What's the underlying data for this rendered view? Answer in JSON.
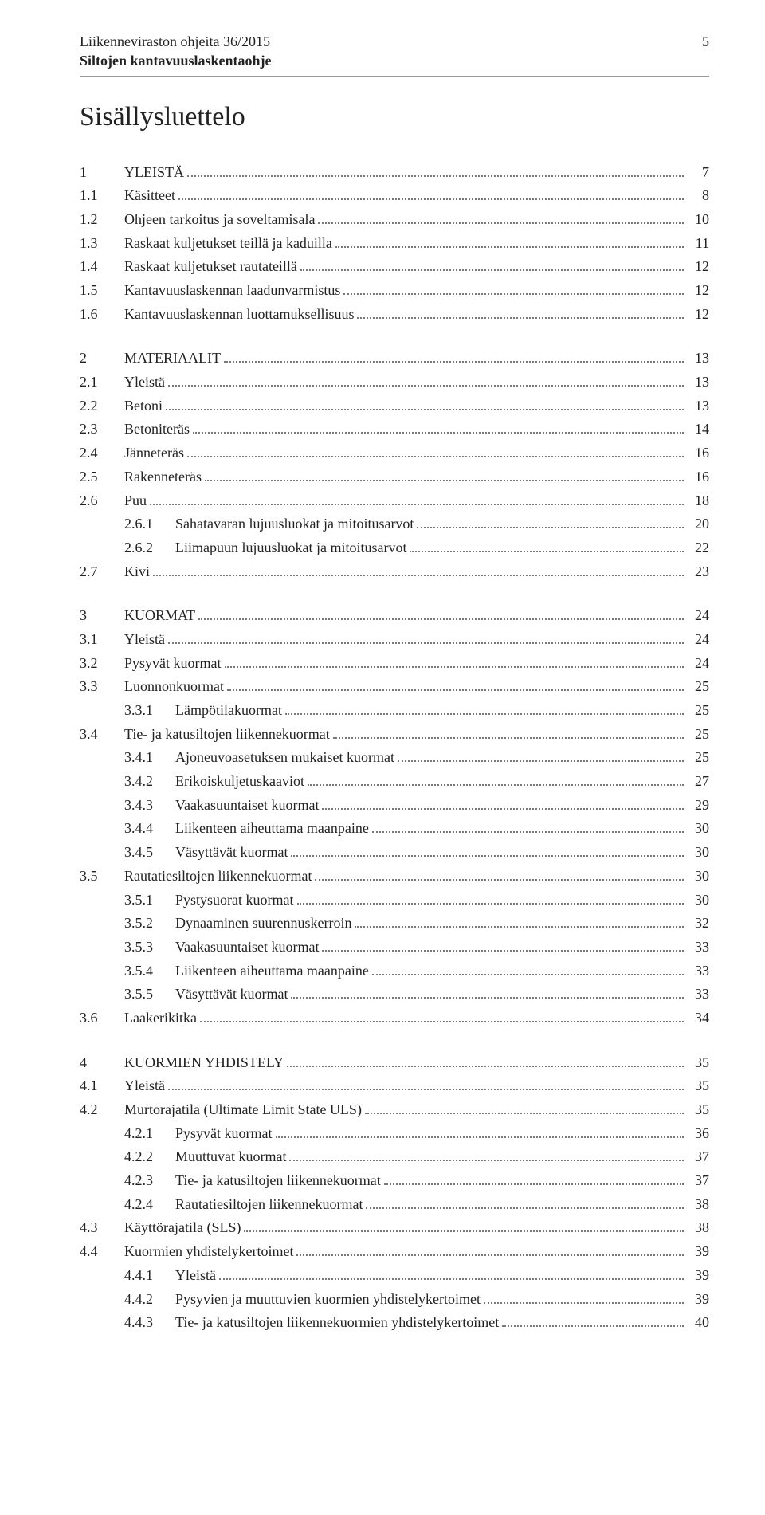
{
  "colors": {
    "text": "#222222",
    "rule": "#999999",
    "leader": "#777777",
    "background": "#ffffff"
  },
  "typography": {
    "body_font": "Georgia, 'Times New Roman', serif",
    "body_size_pt": 13,
    "title_size_pt": 26,
    "line_height": 1.65
  },
  "header": {
    "line1": "Liikenneviraston ohjeita 36/2015",
    "line2": "Siltojen kantavuuslaskentaohje",
    "page_number": "5"
  },
  "title": "Sisällysluettelo",
  "toc": [
    {
      "items": [
        {
          "level": 1,
          "num": "1",
          "label": "YLEISTÄ",
          "caps": true,
          "page": "7"
        },
        {
          "level": 2,
          "num": "1.1",
          "label": "Käsitteet",
          "page": "8"
        },
        {
          "level": 2,
          "num": "1.2",
          "label": "Ohjeen tarkoitus ja soveltamisala",
          "page": "10"
        },
        {
          "level": 2,
          "num": "1.3",
          "label": "Raskaat kuljetukset teillä ja kaduilla",
          "page": "11"
        },
        {
          "level": 2,
          "num": "1.4",
          "label": "Raskaat kuljetukset rautateillä",
          "page": "12"
        },
        {
          "level": 2,
          "num": "1.5",
          "label": "Kantavuuslaskennan laadunvarmistus",
          "page": "12"
        },
        {
          "level": 2,
          "num": "1.6",
          "label": "Kantavuuslaskennan luottamuksellisuus",
          "page": "12"
        }
      ]
    },
    {
      "items": [
        {
          "level": 1,
          "num": "2",
          "label": "MATERIAALIT",
          "caps": true,
          "page": "13"
        },
        {
          "level": 2,
          "num": "2.1",
          "label": "Yleistä",
          "page": "13"
        },
        {
          "level": 2,
          "num": "2.2",
          "label": "Betoni",
          "page": "13"
        },
        {
          "level": 2,
          "num": "2.3",
          "label": "Betoniteräs",
          "page": "14"
        },
        {
          "level": 2,
          "num": "2.4",
          "label": "Jänneteräs",
          "page": "16"
        },
        {
          "level": 2,
          "num": "2.5",
          "label": "Rakenneteräs",
          "page": "16"
        },
        {
          "level": 2,
          "num": "2.6",
          "label": "Puu",
          "page": "18"
        },
        {
          "level": 3,
          "num": "2.6.1",
          "label": "Sahatavaran lujuusluokat ja mitoitusarvot",
          "page": "20"
        },
        {
          "level": 3,
          "num": "2.6.2",
          "label": "Liimapuun lujuusluokat ja mitoitusarvot",
          "page": "22"
        },
        {
          "level": 2,
          "num": "2.7",
          "label": "Kivi",
          "page": "23"
        }
      ]
    },
    {
      "items": [
        {
          "level": 1,
          "num": "3",
          "label": "KUORMAT",
          "caps": true,
          "page": "24"
        },
        {
          "level": 2,
          "num": "3.1",
          "label": "Yleistä",
          "page": "24"
        },
        {
          "level": 2,
          "num": "3.2",
          "label": "Pysyvät kuormat",
          "page": "24"
        },
        {
          "level": 2,
          "num": "3.3",
          "label": "Luonnonkuormat",
          "page": "25"
        },
        {
          "level": 3,
          "num": "3.3.1",
          "label": "Lämpötilakuormat",
          "page": "25"
        },
        {
          "level": 2,
          "num": "3.4",
          "label": "Tie- ja katusiltojen liikennekuormat",
          "page": "25"
        },
        {
          "level": 3,
          "num": "3.4.1",
          "label": "Ajoneuvoasetuksen mukaiset kuormat",
          "page": "25"
        },
        {
          "level": 3,
          "num": "3.4.2",
          "label": "Erikoiskuljetuskaaviot",
          "page": "27"
        },
        {
          "level": 3,
          "num": "3.4.3",
          "label": "Vaakasuuntaiset kuormat",
          "page": "29"
        },
        {
          "level": 3,
          "num": "3.4.4",
          "label": "Liikenteen aiheuttama maanpaine",
          "page": "30"
        },
        {
          "level": 3,
          "num": "3.4.5",
          "label": "Väsyttävät kuormat",
          "page": "30"
        },
        {
          "level": 2,
          "num": "3.5",
          "label": "Rautatiesiltojen liikennekuormat",
          "page": "30"
        },
        {
          "level": 3,
          "num": "3.5.1",
          "label": "Pystysuorat kuormat",
          "page": "30"
        },
        {
          "level": 3,
          "num": "3.5.2",
          "label": "Dynaaminen suurennuskerroin",
          "page": "32"
        },
        {
          "level": 3,
          "num": "3.5.3",
          "label": "Vaakasuuntaiset kuormat",
          "page": "33"
        },
        {
          "level": 3,
          "num": "3.5.4",
          "label": "Liikenteen aiheuttama maanpaine",
          "page": "33"
        },
        {
          "level": 3,
          "num": "3.5.5",
          "label": "Väsyttävät kuormat",
          "page": "33"
        },
        {
          "level": 2,
          "num": "3.6",
          "label": "Laakerikitka",
          "page": "34"
        }
      ]
    },
    {
      "items": [
        {
          "level": 1,
          "num": "4",
          "label": "KUORMIEN YHDISTELY",
          "caps": true,
          "page": "35"
        },
        {
          "level": 2,
          "num": "4.1",
          "label": "Yleistä",
          "page": "35"
        },
        {
          "level": 2,
          "num": "4.2",
          "label": "Murtorajatila (Ultimate Limit State ULS)",
          "page": "35"
        },
        {
          "level": 3,
          "num": "4.2.1",
          "label": "Pysyvät kuormat",
          "page": "36"
        },
        {
          "level": 3,
          "num": "4.2.2",
          "label": "Muuttuvat kuormat",
          "page": "37"
        },
        {
          "level": 3,
          "num": "4.2.3",
          "label": "Tie- ja katusiltojen liikennekuormat",
          "page": "37"
        },
        {
          "level": 3,
          "num": "4.2.4",
          "label": "Rautatiesiltojen liikennekuormat",
          "page": "38"
        },
        {
          "level": 2,
          "num": "4.3",
          "label": "Käyttörajatila (SLS)",
          "page": "38"
        },
        {
          "level": 2,
          "num": "4.4",
          "label": "Kuormien yhdistelykertoimet",
          "page": "39"
        },
        {
          "level": 3,
          "num": "4.4.1",
          "label": "Yleistä",
          "page": "39"
        },
        {
          "level": 3,
          "num": "4.4.2",
          "label": "Pysyvien ja muuttuvien kuormien yhdistelykertoimet",
          "page": "39"
        },
        {
          "level": 3,
          "num": "4.4.3",
          "label": "Tie- ja katusiltojen liikennekuormien yhdistelykertoimet",
          "page": "40"
        }
      ]
    }
  ]
}
